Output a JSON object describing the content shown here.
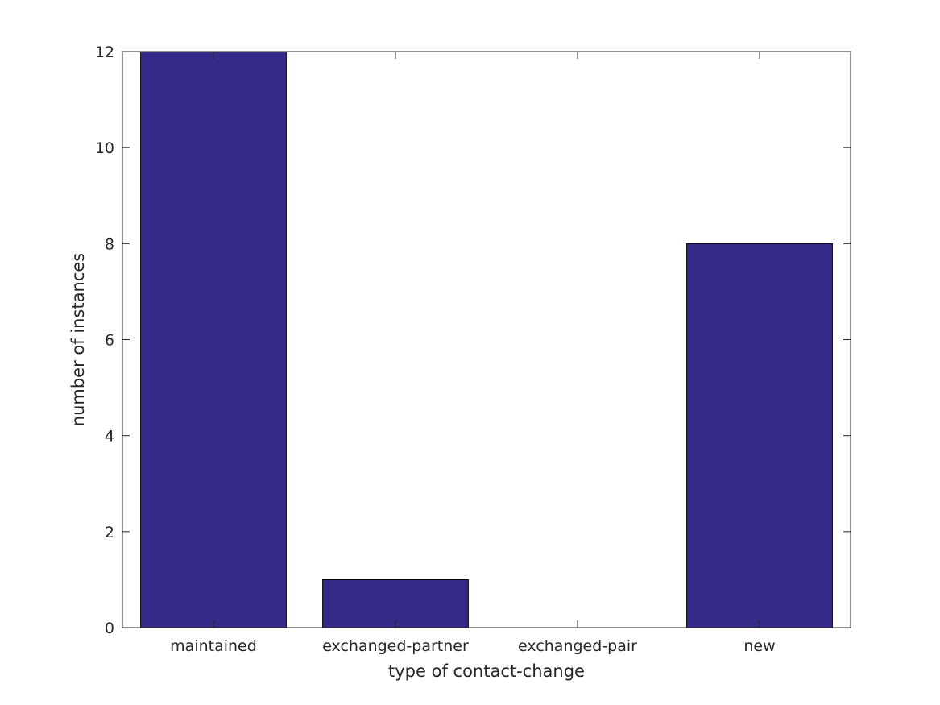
{
  "chart_data": {
    "type": "bar",
    "categories": [
      "maintained",
      "exchanged-partner",
      "exchanged-pair",
      "new"
    ],
    "values": [
      12,
      1,
      0,
      8
    ],
    "title": "",
    "xlabel": "type of contact-change",
    "ylabel": "number of instances",
    "ylim": [
      0,
      12
    ],
    "yticks": [
      0,
      2,
      4,
      6,
      8,
      10,
      12
    ],
    "ytick_labels": [
      "0",
      "2",
      "4",
      "6",
      "8",
      "10",
      "12"
    ],
    "grid": false,
    "bar_color": "#352a87",
    "bar_edge_color": "#000000"
  }
}
